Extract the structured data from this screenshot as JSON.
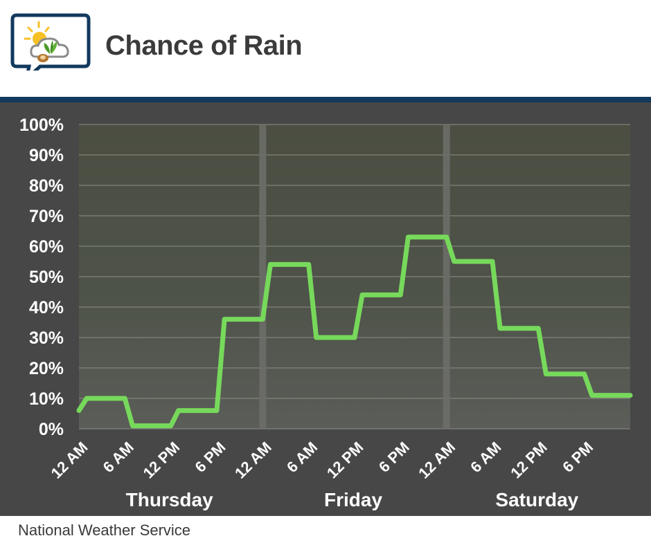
{
  "header": {
    "title": "Chance of Rain",
    "logo_icon": "sun-cloud-plant-icon"
  },
  "footer": {
    "source": "National Weather Service"
  },
  "colors": {
    "line": "#77d95b",
    "divider": "#12395e",
    "chart_background": "#474747",
    "title": "#3b3b3b"
  },
  "chart_data": {
    "type": "line",
    "title": "Chance of Rain",
    "xlabel": "",
    "ylabel": "",
    "ylim": [
      0,
      100
    ],
    "y_ticks": [
      0,
      10,
      20,
      30,
      40,
      50,
      60,
      70,
      80,
      90,
      100
    ],
    "y_tick_labels": [
      "0%",
      "10%",
      "20%",
      "30%",
      "40%",
      "50%",
      "60%",
      "70%",
      "80%",
      "90%",
      "100%"
    ],
    "x_unit": "hours from Thursday 12 AM",
    "x_range": [
      0,
      72
    ],
    "x_ticks": [
      0,
      6,
      12,
      18,
      24,
      30,
      36,
      42,
      48,
      54,
      60,
      66
    ],
    "x_tick_labels": [
      "12 AM",
      "6 AM",
      "12 PM",
      "6 PM",
      "12 AM",
      "6 AM",
      "12 PM",
      "6 PM",
      "12 AM",
      "6 AM",
      "12 PM",
      "6 PM"
    ],
    "day_labels": [
      {
        "label": "Thursday",
        "center_hour": 12
      },
      {
        "label": "Friday",
        "center_hour": 36
      },
      {
        "label": "Saturday",
        "center_hour": 60
      }
    ],
    "day_separators": [
      24,
      48
    ],
    "grid": true,
    "series": [
      {
        "values": [
          [
            0,
            6
          ],
          [
            1,
            10
          ],
          [
            6,
            10
          ],
          [
            7,
            1
          ],
          [
            12,
            1
          ],
          [
            13,
            6
          ],
          [
            18,
            6
          ],
          [
            19,
            36
          ],
          [
            24,
            36
          ],
          [
            25,
            54
          ],
          [
            30,
            54
          ],
          [
            31,
            30
          ],
          [
            36,
            30
          ],
          [
            37,
            44
          ],
          [
            42,
            44
          ],
          [
            43,
            63
          ],
          [
            48,
            63
          ],
          [
            49,
            55
          ],
          [
            54,
            55
          ],
          [
            55,
            33
          ],
          [
            60,
            33
          ],
          [
            61,
            18
          ],
          [
            66,
            18
          ],
          [
            67,
            11
          ],
          [
            72,
            11
          ]
        ]
      }
    ]
  }
}
